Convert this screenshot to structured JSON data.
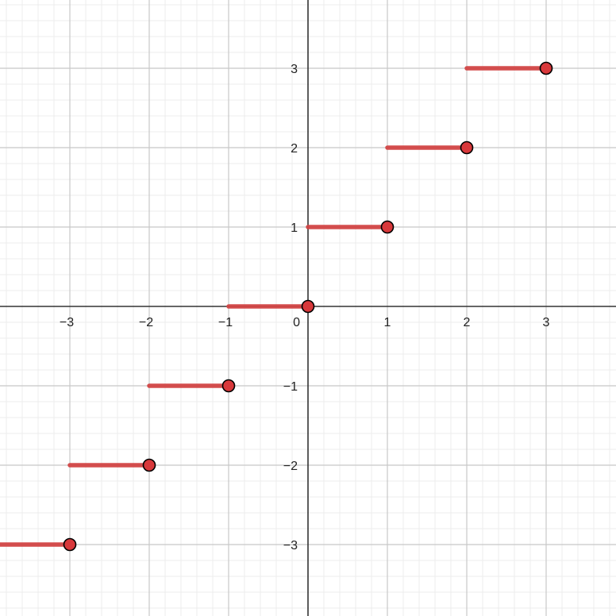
{
  "chart_data": {
    "type": "line",
    "title": "",
    "xlabel": "",
    "ylabel": "",
    "xlim": [
      -3.88,
      3.88
    ],
    "ylim": [
      -3.9,
      3.86
    ],
    "grid": true,
    "minor_grid_step": 0.2,
    "x_ticks": [
      -3,
      -2,
      -1,
      0,
      1,
      2,
      3
    ],
    "y_ticks": [
      -3,
      -2,
      -1,
      1,
      2,
      3
    ],
    "x_tick_labels": [
      "−3",
      "−2",
      "−1",
      "0",
      "1",
      "2",
      "3"
    ],
    "y_tick_labels": [
      "−3",
      "−2",
      "−1",
      "1",
      "2",
      "3"
    ],
    "series": [
      {
        "segments": [
          {
            "x_start": -3.88,
            "x_end": -3,
            "y": -3
          },
          {
            "x_start": -3,
            "x_end": -2,
            "y": -2
          },
          {
            "x_start": -2,
            "x_end": -1,
            "y": -1
          },
          {
            "x_start": -1,
            "x_end": 0,
            "y": 0
          },
          {
            "x_start": 0,
            "x_end": 1,
            "y": 1
          },
          {
            "x_start": 1,
            "x_end": 2,
            "y": 2
          },
          {
            "x_start": 2,
            "x_end": 3,
            "y": 3
          }
        ],
        "closed_points": [
          {
            "x": -3,
            "y": -3
          },
          {
            "x": -2,
            "y": -2
          },
          {
            "x": -1,
            "y": -1
          },
          {
            "x": 0,
            "y": 0
          },
          {
            "x": 1,
            "y": 1
          },
          {
            "x": 2,
            "y": 2
          },
          {
            "x": 3,
            "y": 3
          }
        ]
      }
    ],
    "colors": {
      "series": "#d24545",
      "point_fill": "#d8383b",
      "point_stroke": "#000000",
      "axis": "#333333",
      "major_grid": "#c8c8c8",
      "minor_grid": "#ececec"
    }
  }
}
